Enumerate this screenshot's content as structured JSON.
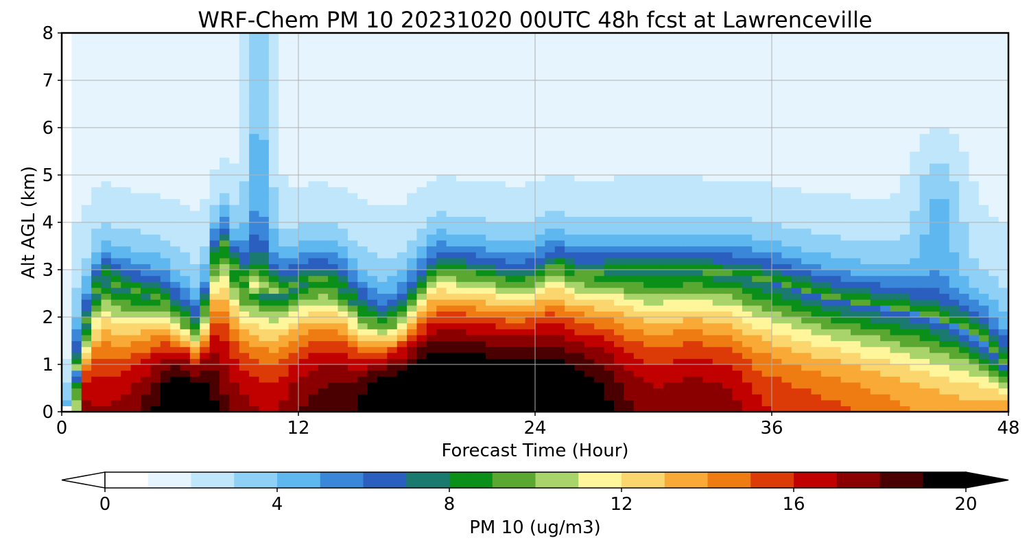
{
  "chart_data": {
    "type": "heatmap",
    "title": "WRF-Chem PM 10  20231020 00UTC 48h fcst at Lawrenceville",
    "xlabel": "Forecast Time (Hour)",
    "ylabel": "Alt AGL (km)",
    "xlim": [
      0,
      48
    ],
    "ylim": [
      0,
      8
    ],
    "x_ticks": [
      0,
      12,
      24,
      36,
      48
    ],
    "y_ticks": [
      0,
      1,
      2,
      3,
      4,
      5,
      6,
      7,
      8
    ],
    "grid": true,
    "colorbar": {
      "label": "PM 10  (ug/m3)",
      "range": [
        0,
        20
      ],
      "ticks": [
        0,
        4,
        8,
        12,
        16,
        20
      ],
      "extend": "both",
      "colors": [
        "#ffffff",
        "#e6f5fd",
        "#bfe6fb",
        "#8fd0f7",
        "#5eb7ef",
        "#3a86d8",
        "#2a5fbf",
        "#1a7a70",
        "#0a8f18",
        "#5aa832",
        "#a9d36b",
        "#fff59a",
        "#fbd66f",
        "#f8a936",
        "#ef7c13",
        "#dc3a06",
        "#c10000",
        "#8a0000",
        "#4a0000",
        "#000000"
      ]
    },
    "x": [
      0,
      0.5,
      1,
      2,
      3,
      4,
      5,
      6,
      7,
      8,
      9,
      10,
      11,
      12,
      13,
      14,
      15,
      16,
      17,
      18,
      19,
      20,
      21,
      22,
      23,
      24,
      25,
      26,
      27,
      28,
      29,
      30,
      31,
      32,
      33,
      34,
      35,
      36,
      37,
      38,
      39,
      40,
      41,
      42,
      43,
      44,
      45,
      46,
      47,
      48
    ],
    "y": [
      0.05,
      0.25,
      0.5,
      0.75,
      1.0,
      1.25,
      1.5,
      1.75,
      2.0,
      2.25,
      2.5,
      2.75,
      3.0,
      3.25,
      3.5,
      4.0,
      4.5,
      5.0,
      5.5,
      6.0,
      6.5,
      7.0,
      7.5,
      8.0
    ]
  }
}
